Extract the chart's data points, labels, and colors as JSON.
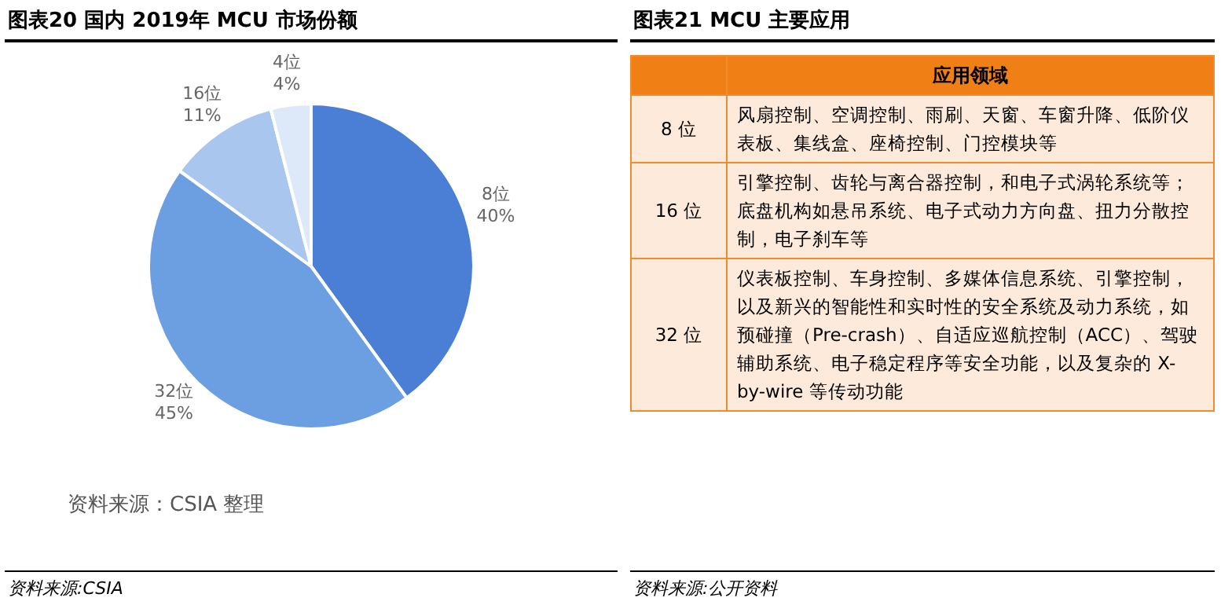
{
  "chart_data": [
    {
      "type": "pie",
      "title": "图表20   国内 2019年 MCU 市场份额",
      "categories": [
        "8位",
        "32位",
        "16位",
        "4位"
      ],
      "values": [
        40,
        45,
        11,
        4
      ],
      "colors": [
        "#4a7fd5",
        "#6c9fe2",
        "#a9c6ef",
        "#dde9f9"
      ],
      "value_labels": [
        "40%",
        "45%",
        "11%",
        "4%"
      ],
      "annotations": [
        "资料来源：CSIA 整理",
        "资料来源:CSIA"
      ]
    },
    {
      "type": "other",
      "title": "图表21   MCU 主要应用",
      "categories": [
        "8 位",
        "16 位",
        "32 位"
      ],
      "annotations": [
        "应用领域",
        "风扇控制、空调控制、雨刷、天窗、车窗升降、低阶仪表板、集线盒、座椅控制、门控模块等",
        "引擎控制、齿轮与离合器控制，和电子式涡轮系统等；底盘机构如悬吊系统、电子式动力方向盘、扭力分散控制，电子刹车等",
        "仪表板控制、车身控制、多媒体信息系统、引擎控制，以及新兴的智能性和实时性的安全系统及动力系统，如预碰撞（Pre-crash）、自适应巡航控制（ACC）、驾驶辅助系统、电子稳定程序等安全功能，以及复杂的 X-by-wire 等传动功能",
        "资料来源:公开资料"
      ]
    }
  ]
}
